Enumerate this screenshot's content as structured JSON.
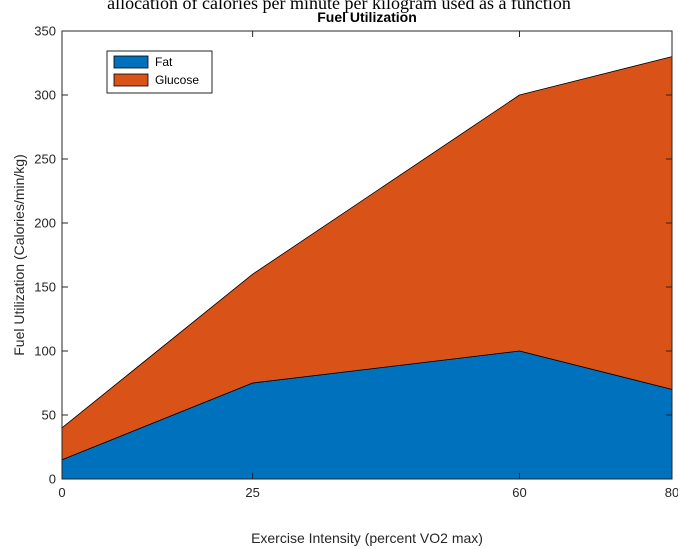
{
  "caption": "allocation of calories per minute per kilogram used as a function",
  "chart_data": {
    "type": "area",
    "stacked": true,
    "title": "Fuel Utilization",
    "xlabel": "Exercise Intensity (percent VO2 max)",
    "ylabel": "Fuel Utilization (Calories/min/kg)",
    "categories": [
      "0",
      "25",
      "60",
      "80"
    ],
    "series": [
      {
        "name": "Fat",
        "values": [
          15,
          75,
          100,
          70
        ],
        "color": "#0072BD"
      },
      {
        "name": "Glucose",
        "values": [
          25,
          85,
          200,
          260
        ],
        "color": "#D95319"
      }
    ],
    "ylim": [
      0,
      350
    ],
    "yticks": [
      0,
      50,
      100,
      150,
      200,
      250,
      300,
      350
    ],
    "grid": false,
    "legend": "top-left"
  }
}
